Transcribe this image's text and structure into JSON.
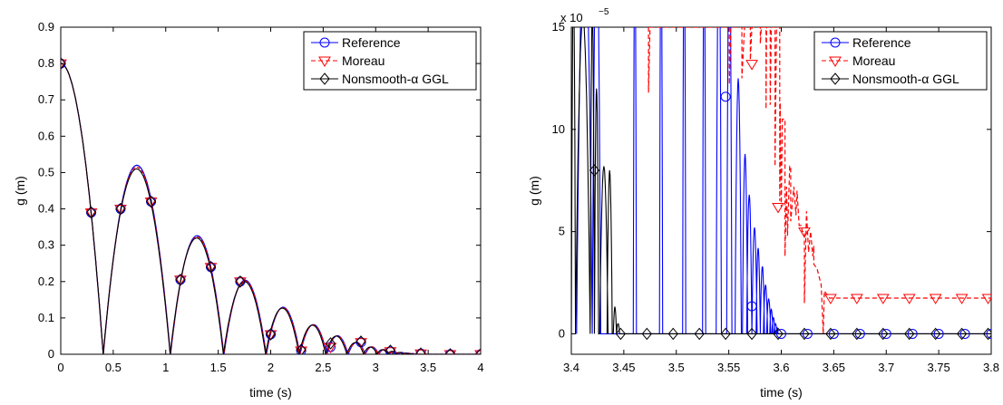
{
  "colors": {
    "reference": "#0000ff",
    "moreau": "#ff0000",
    "ggl": "#000000"
  },
  "chart_data": [
    {
      "type": "line",
      "xlabel": "time (s)",
      "ylabel": "g (m)",
      "xlim": [
        0,
        4
      ],
      "ylim": [
        0,
        0.9
      ],
      "xticks": [
        "0",
        "0.5",
        "1",
        "1.5",
        "2",
        "2.5",
        "3",
        "3.5",
        "4"
      ],
      "yticks": [
        "0",
        "0.1",
        "0.2",
        "0.3",
        "0.4",
        "0.5",
        "0.6",
        "0.7",
        "0.8",
        "0.9"
      ],
      "legend_position": "top-right",
      "series": [
        {
          "name": "Reference",
          "line": "solid",
          "marker": "circle"
        },
        {
          "name": "Moreau",
          "line": "dashed",
          "marker": "triangle-down"
        },
        {
          "name": "Nonsmooth-α GGL",
          "line": "solid",
          "marker": "diamond"
        }
      ],
      "curve": {
        "bounces": [
          [
            0,
            0.8,
            0.404
          ],
          [
            0.404,
            0,
            1.042
          ],
          [
            1.042,
            0,
            1.549
          ],
          [
            1.549,
            0,
            1.951
          ],
          [
            1.951,
            0,
            2.27
          ],
          [
            2.27,
            0,
            2.524
          ],
          [
            2.524,
            0,
            2.725
          ],
          [
            2.725,
            0,
            2.885
          ],
          [
            2.885,
            0,
            3.012
          ],
          [
            3.012,
            0,
            3.113
          ],
          [
            3.113,
            0,
            3.193
          ],
          [
            3.193,
            0,
            3.257
          ],
          [
            3.257,
            0,
            3.308
          ],
          [
            3.308,
            0,
            3.348
          ]
        ],
        "peaks": [
          0.8,
          0.51,
          0.32,
          0.2,
          0.127,
          0.08,
          0.05,
          0.032,
          0.02,
          0.0127,
          0.008,
          0.005,
          0.0032,
          0.002
        ],
        "blue_offsets": [
          0,
          0,
          0.01,
          0.01,
          0.012,
          0.012,
          0.012,
          0.01,
          0.008,
          0.006,
          0.005,
          0.004,
          0.003,
          0.003
        ]
      },
      "marker_points": [
        {
          "x": 0.0,
          "y": 0.8
        },
        {
          "x": 0.29,
          "y": 0.39
        },
        {
          "x": 0.57,
          "y": 0.4
        },
        {
          "x": 0.86,
          "y": 0.42
        },
        {
          "x": 1.14,
          "y": 0.205
        },
        {
          "x": 1.43,
          "y": 0.24
        },
        {
          "x": 1.71,
          "y": 0.2
        },
        {
          "x": 2.0,
          "y": 0.055
        },
        {
          "x": 2.29,
          "y": 0.01
        },
        {
          "x": 2.57,
          "y": 0.02
        },
        {
          "x": 2.86,
          "y": 0.033
        },
        {
          "x": 3.14,
          "y": 0.008
        },
        {
          "x": 3.43,
          "y": 0.002
        },
        {
          "x": 3.71,
          "y": 0.0
        },
        {
          "x": 4.0,
          "y": 0.0
        }
      ],
      "diamond_points": [
        {
          "x": 0.0,
          "y": 0.8
        },
        {
          "x": 0.29,
          "y": 0.39
        },
        {
          "x": 0.57,
          "y": 0.4
        },
        {
          "x": 0.86,
          "y": 0.42
        },
        {
          "x": 1.14,
          "y": 0.205
        },
        {
          "x": 1.43,
          "y": 0.24
        },
        {
          "x": 1.71,
          "y": 0.2
        },
        {
          "x": 2.0,
          "y": 0.055
        },
        {
          "x": 2.29,
          "y": 0.012
        },
        {
          "x": 2.57,
          "y": 0.03
        },
        {
          "x": 2.86,
          "y": 0.035
        },
        {
          "x": 3.14,
          "y": 0.01
        },
        {
          "x": 3.43,
          "y": 0.002
        },
        {
          "x": 3.71,
          "y": 0.0
        },
        {
          "x": 4.0,
          "y": 0.0
        }
      ]
    },
    {
      "type": "line",
      "xlabel": "time (s)",
      "ylabel": "g (m)",
      "xlim": [
        3.4,
        3.8
      ],
      "ylim": [
        -1,
        15
      ],
      "y_multiplier": "x 10",
      "y_multiplier_exp": "−5",
      "xticks": [
        "3.4",
        "3.45",
        "3.5",
        "3.55",
        "3.6",
        "3.65",
        "3.7",
        "3.75",
        "3.8"
      ],
      "yticks": [
        "0",
        "5",
        "10",
        "15"
      ],
      "legend_position": "top-right",
      "series": [
        {
          "name": "Reference",
          "line": "solid",
          "marker": "circle"
        },
        {
          "name": "Moreau",
          "line": "dashed",
          "marker": "triangle-down"
        },
        {
          "name": "Nonsmooth-α GGL",
          "line": "solid",
          "marker": "diamond"
        }
      ],
      "reference_spikes": [
        [
          3.405,
          3.42,
          20
        ],
        [
          3.42,
          3.428,
          20
        ],
        [
          3.459,
          3.462,
          20
        ],
        [
          3.484,
          3.487,
          20
        ],
        [
          3.506,
          3.509,
          20
        ],
        [
          3.525,
          3.528,
          20
        ],
        [
          3.538,
          3.543,
          20
        ],
        [
          3.548,
          3.553,
          20
        ],
        [
          3.556,
          3.562,
          12.5
        ],
        [
          3.563,
          3.568,
          8.8
        ],
        [
          3.567,
          3.572,
          6.8
        ],
        [
          3.572,
          3.577,
          5.2
        ],
        [
          3.576,
          3.58,
          4.2
        ],
        [
          3.58,
          3.584,
          3.3
        ],
        [
          3.583,
          3.587,
          2.4
        ],
        [
          3.586,
          3.59,
          1.7
        ],
        [
          3.589,
          3.592,
          1.2
        ],
        [
          3.591,
          3.594,
          0.8
        ],
        [
          3.593,
          3.596,
          0.5
        ],
        [
          3.595,
          3.597,
          0.3
        ]
      ],
      "reference_markers": [
        {
          "x": 3.547,
          "y": 11.6
        },
        {
          "x": 3.572,
          "y": 1.35
        },
        {
          "x": 3.6,
          "y": 0
        },
        {
          "x": 3.625,
          "y": 0
        },
        {
          "x": 3.65,
          "y": 0
        },
        {
          "x": 3.675,
          "y": 0
        },
        {
          "x": 3.7,
          "y": 0
        },
        {
          "x": 3.725,
          "y": 0
        },
        {
          "x": 3.75,
          "y": 0
        },
        {
          "x": 3.775,
          "y": 0
        },
        {
          "x": 3.8,
          "y": 0
        }
      ],
      "moreau_path": [
        [
          3.4735,
          15
        ],
        [
          3.4735,
          11.8
        ],
        [
          3.475,
          15
        ],
        [
          3.5505,
          15
        ],
        [
          3.5505,
          12.2
        ],
        [
          3.552,
          15
        ],
        [
          3.5625,
          15
        ],
        [
          3.5625,
          12.5
        ],
        [
          3.565,
          15
        ],
        [
          3.5705,
          15
        ],
        [
          3.5705,
          13.4
        ],
        [
          3.572,
          15
        ],
        [
          3.58,
          15
        ],
        [
          3.58,
          14.2
        ],
        [
          3.581,
          15
        ],
        [
          3.5855,
          15
        ],
        [
          3.5855,
          11
        ],
        [
          3.586,
          15
        ],
        [
          3.5895,
          15
        ],
        [
          3.5895,
          11.2
        ],
        [
          3.5905,
          15
        ],
        [
          3.594,
          15
        ],
        [
          3.594,
          8.2
        ],
        [
          3.5955,
          15
        ],
        [
          3.5985,
          15
        ],
        [
          3.5985,
          6.5
        ],
        [
          3.599,
          11.3
        ],
        [
          3.6,
          6.2
        ],
        [
          3.601,
          10.5
        ],
        [
          3.6035,
          10.5
        ],
        [
          3.6035,
          3.8
        ],
        [
          3.605,
          7.2
        ],
        [
          3.606,
          4.8
        ],
        [
          3.608,
          8.2
        ],
        [
          3.609,
          8.2
        ],
        [
          3.609,
          5.5
        ],
        [
          3.612,
          7.2
        ],
        [
          3.614,
          5.8
        ],
        [
          3.615,
          7
        ],
        [
          3.617,
          5.3
        ],
        [
          3.619,
          5.3
        ],
        [
          3.62,
          5
        ],
        [
          3.622,
          5
        ],
        [
          3.622,
          1.5
        ],
        [
          3.624,
          6
        ],
        [
          3.626,
          4
        ],
        [
          3.628,
          5
        ],
        [
          3.63,
          3.8
        ],
        [
          3.631,
          4.3
        ],
        [
          3.631,
          3.4
        ],
        [
          3.634,
          3.2
        ],
        [
          3.636,
          2.8
        ],
        [
          3.638,
          2.4
        ],
        [
          3.64,
          0
        ],
        [
          3.641,
          2.1
        ],
        [
          3.643,
          1.95
        ],
        [
          3.646,
          1.75
        ],
        [
          3.8,
          1.75
        ]
      ],
      "moreau_markers": [
        {
          "x": 3.572,
          "y": 13.2
        },
        {
          "x": 3.597,
          "y": 6.2
        },
        {
          "x": 3.622,
          "y": 5.0
        },
        {
          "x": 3.647,
          "y": 1.75
        },
        {
          "x": 3.672,
          "y": 1.75
        },
        {
          "x": 3.697,
          "y": 1.75
        },
        {
          "x": 3.722,
          "y": 1.75
        },
        {
          "x": 3.747,
          "y": 1.75
        },
        {
          "x": 3.772,
          "y": 1.75
        },
        {
          "x": 3.797,
          "y": 1.75
        }
      ],
      "ggl_spikes": [
        [
          3.4,
          3.404,
          17
        ],
        [
          3.404,
          3.418,
          15.5
        ],
        [
          3.418,
          3.422,
          16
        ],
        [
          3.422,
          3.426,
          12
        ],
        [
          3.427,
          3.435,
          8.2
        ],
        [
          3.434,
          3.439,
          8.0
        ],
        [
          3.44,
          3.443,
          1.3
        ],
        [
          3.443,
          3.446,
          0.5
        ]
      ],
      "ggl_markers": [
        {
          "x": 3.422,
          "y": 8.0
        },
        {
          "x": 3.447,
          "y": 0
        },
        {
          "x": 3.472,
          "y": 0
        },
        {
          "x": 3.497,
          "y": 0
        },
        {
          "x": 3.522,
          "y": 0
        },
        {
          "x": 3.547,
          "y": 0
        },
        {
          "x": 3.572,
          "y": 0
        },
        {
          "x": 3.597,
          "y": 0
        },
        {
          "x": 3.622,
          "y": 0
        },
        {
          "x": 3.647,
          "y": 0
        },
        {
          "x": 3.672,
          "y": 0
        },
        {
          "x": 3.697,
          "y": 0
        },
        {
          "x": 3.722,
          "y": 0
        },
        {
          "x": 3.747,
          "y": 0
        },
        {
          "x": 3.772,
          "y": 0
        },
        {
          "x": 3.797,
          "y": 0
        }
      ]
    }
  ]
}
